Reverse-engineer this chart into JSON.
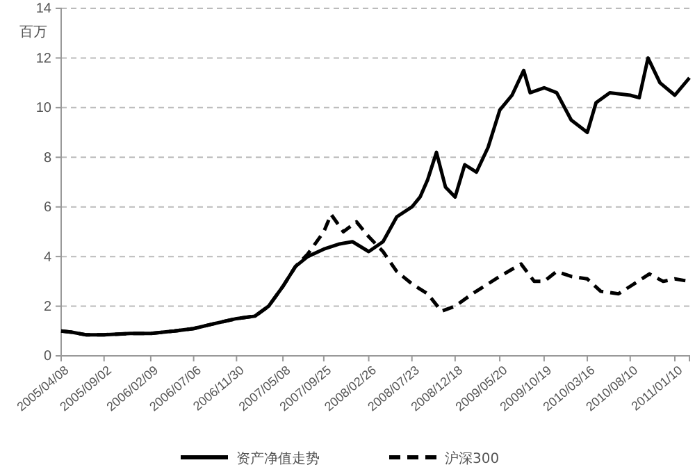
{
  "chart_data": {
    "type": "line",
    "ylabel": "百万",
    "xlim": [
      "2005-04-08",
      "2011-03-01"
    ],
    "ylim": [
      0,
      14
    ],
    "yticks": [
      0,
      2,
      4,
      6,
      8,
      10,
      12,
      14
    ],
    "xticks": [
      {
        "value": "2005-04-08",
        "label": "2005/04/08"
      },
      {
        "value": "2005-09-02",
        "label": "2005/09/02"
      },
      {
        "value": "2006-02-09",
        "label": "2006/02/09"
      },
      {
        "value": "2006-07-06",
        "label": "2006/07/06"
      },
      {
        "value": "2006-11-30",
        "label": "2006/11/30"
      },
      {
        "value": "2007-05-08",
        "label": "2007/05/08"
      },
      {
        "value": "2007-09-25",
        "label": "2007/09/25"
      },
      {
        "value": "2008-02-26",
        "label": "2008/02/26"
      },
      {
        "value": "2008-07-23",
        "label": "2008/07/23"
      },
      {
        "value": "2008-12-18",
        "label": "2008/12/18"
      },
      {
        "value": "2009-05-20",
        "label": "2009/05/20"
      },
      {
        "value": "2009-10-19",
        "label": "2009/10/19"
      },
      {
        "value": "2010-03-16",
        "label": "2010/03/16"
      },
      {
        "value": "2010-08-10",
        "label": "2010/08/10"
      },
      {
        "value": "2011-01-10",
        "label": "2011/01/10"
      }
    ],
    "grid": "y",
    "legend": "bottom",
    "series": [
      {
        "name": "资产净值走势",
        "color": "#000000",
        "line_style": "solid",
        "x": [
          "2005-04-08",
          "2005-05-15",
          "2005-07-01",
          "2005-09-02",
          "2005-12-01",
          "2006-02-09",
          "2006-05-01",
          "2006-07-06",
          "2006-09-15",
          "2006-11-30",
          "2007-02-01",
          "2007-03-20",
          "2007-05-08",
          "2007-06-20",
          "2007-08-01",
          "2007-09-25",
          "2007-11-15",
          "2008-01-01",
          "2008-02-26",
          "2008-04-15",
          "2008-06-01",
          "2008-07-23",
          "2008-08-20",
          "2008-09-15",
          "2008-10-15",
          "2008-11-15",
          "2008-12-18",
          "2009-01-20",
          "2009-03-01",
          "2009-04-10",
          "2009-05-20",
          "2009-07-01",
          "2009-08-10",
          "2009-09-01",
          "2009-10-19",
          "2009-12-01",
          "2010-01-20",
          "2010-03-16",
          "2010-04-15",
          "2010-06-01",
          "2010-08-10",
          "2010-09-10",
          "2010-10-10",
          "2010-11-20",
          "2011-01-10",
          "2011-03-01"
        ],
        "values": [
          1.0,
          0.95,
          0.85,
          0.85,
          0.9,
          0.9,
          1.0,
          1.1,
          1.3,
          1.5,
          1.6,
          2.0,
          2.8,
          3.6,
          4.0,
          4.3,
          4.5,
          4.6,
          4.2,
          4.6,
          5.6,
          6.0,
          6.4,
          7.1,
          8.2,
          6.8,
          6.4,
          7.7,
          7.4,
          8.4,
          9.9,
          10.5,
          11.5,
          10.6,
          10.8,
          10.6,
          9.5,
          9.0,
          10.2,
          10.6,
          10.5,
          10.4,
          12.0,
          11.0,
          10.5,
          11.2
        ]
      },
      {
        "name": "沪深300",
        "color": "#000000",
        "line_style": "dashed",
        "x": [
          "2005-04-08",
          "2005-05-15",
          "2005-07-01",
          "2005-09-02",
          "2005-12-01",
          "2006-02-09",
          "2006-05-01",
          "2006-07-06",
          "2006-09-15",
          "2006-11-30",
          "2007-02-01",
          "2007-03-20",
          "2007-05-08",
          "2007-06-20",
          "2007-08-01",
          "2007-09-25",
          "2007-10-20",
          "2007-12-01",
          "2008-01-15",
          "2008-02-26",
          "2008-04-15",
          "2008-06-01",
          "2008-07-23",
          "2008-09-15",
          "2008-11-01",
          "2008-12-18",
          "2009-02-15",
          "2009-05-20",
          "2009-08-01",
          "2009-09-15",
          "2009-10-19",
          "2009-12-01",
          "2010-01-20",
          "2010-03-16",
          "2010-05-01",
          "2010-07-01",
          "2010-08-10",
          "2010-10-15",
          "2010-12-01",
          "2011-01-10",
          "2011-03-01"
        ],
        "values": [
          1.0,
          0.95,
          0.85,
          0.85,
          0.9,
          0.9,
          1.0,
          1.1,
          1.3,
          1.5,
          1.6,
          2.0,
          2.8,
          3.6,
          4.1,
          5.0,
          5.7,
          5.0,
          5.4,
          4.8,
          4.2,
          3.4,
          2.9,
          2.5,
          1.8,
          2.0,
          2.5,
          3.2,
          3.7,
          3.0,
          3.0,
          3.4,
          3.2,
          3.1,
          2.6,
          2.5,
          2.8,
          3.3,
          3.0,
          3.1,
          3.0
        ]
      }
    ]
  }
}
